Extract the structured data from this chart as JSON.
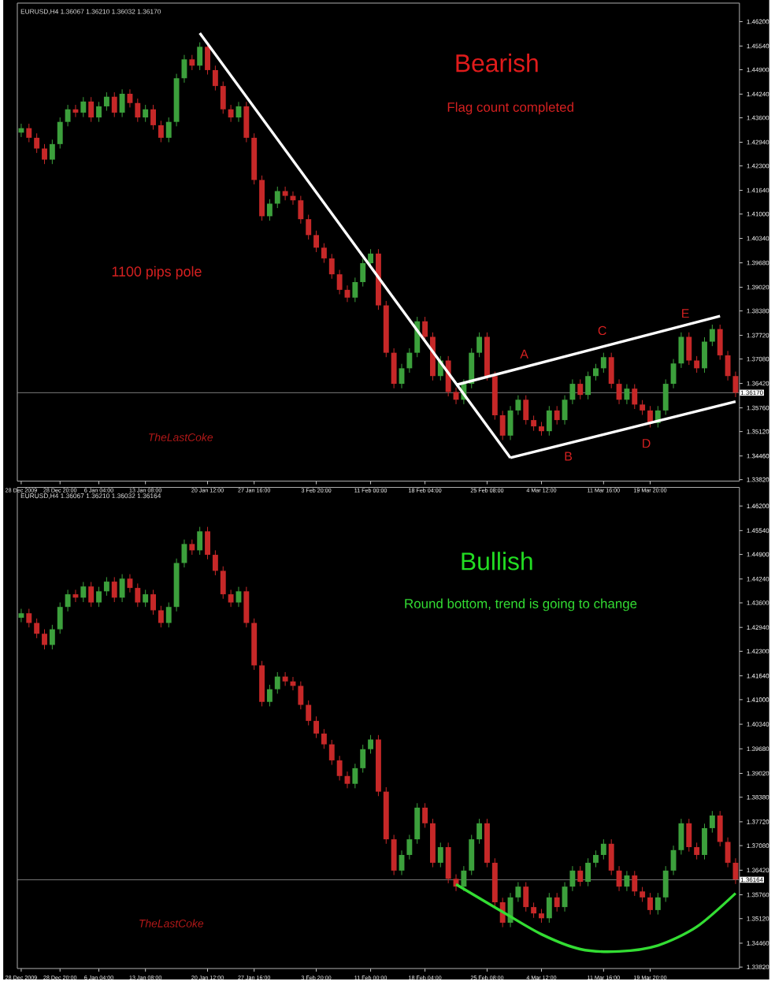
{
  "chart_data": [
    {
      "type": "candlestick",
      "title": "Bearish",
      "subtitle": "Flag count completed",
      "categories": [
        "28 Dec 2009",
        null,
        null,
        null,
        null,
        "28 Dec 20:00",
        null,
        null,
        null,
        null,
        "6 Jan 04:00",
        null,
        null,
        null,
        null,
        null,
        "13 Jan 08:00",
        null,
        null,
        null,
        null,
        null,
        null,
        null,
        "20 Jan 12:00",
        null,
        null,
        null,
        null,
        null,
        "27 Jan 16:00",
        null,
        null,
        null,
        null,
        null,
        null,
        null,
        "3 Feb 20:00",
        null,
        null,
        null,
        null,
        null,
        null,
        "11 Feb 00:00",
        null,
        null,
        null,
        null,
        null,
        null,
        "18 Feb 04:00",
        null,
        null,
        null,
        null,
        null,
        null,
        null,
        "25 Feb 08:00",
        null,
        null,
        null,
        null,
        null,
        null,
        "4 Mar 12:00",
        null,
        null,
        null,
        null,
        null,
        null,
        null,
        "11 Mar 16:00",
        null,
        null,
        null,
        null,
        null,
        "19 Mar 20:00",
        null,
        null,
        null,
        null,
        null,
        null,
        null,
        null,
        null,
        null,
        null
      ],
      "ohlc": [
        [
          1.432,
          1.4344,
          1.4308,
          1.4332
        ],
        [
          1.4332,
          1.4344,
          1.4294,
          1.4306
        ],
        [
          1.4306,
          1.4318,
          1.4265,
          1.4277
        ],
        [
          1.4277,
          1.4289,
          1.4235,
          1.4247
        ],
        [
          1.4247,
          1.4301,
          1.4235,
          1.4289
        ],
        [
          1.4289,
          1.4361,
          1.4277,
          1.4349
        ],
        [
          1.4349,
          1.4395,
          1.4337,
          1.4383
        ],
        [
          1.4383,
          1.4395,
          1.4362,
          1.4374
        ],
        [
          1.4374,
          1.4416,
          1.4362,
          1.4404
        ],
        [
          1.4404,
          1.4416,
          1.4349,
          1.4361
        ],
        [
          1.4361,
          1.4403,
          1.4349,
          1.4391
        ],
        [
          1.4391,
          1.4429,
          1.4379,
          1.4417
        ],
        [
          1.4417,
          1.4429,
          1.4362,
          1.4374
        ],
        [
          1.4374,
          1.4437,
          1.4362,
          1.4425
        ],
        [
          1.4425,
          1.4437,
          1.4388,
          1.44
        ],
        [
          1.44,
          1.4412,
          1.4349,
          1.4361
        ],
        [
          1.4361,
          1.4395,
          1.4349,
          1.4383
        ],
        [
          1.4383,
          1.4395,
          1.4328,
          1.434
        ],
        [
          1.434,
          1.4352,
          1.4294,
          1.4306
        ],
        [
          1.4306,
          1.4361,
          1.4294,
          1.4349
        ],
        [
          1.4349,
          1.4479,
          1.4337,
          1.4467
        ],
        [
          1.4467,
          1.453,
          1.4455,
          1.4518
        ],
        [
          1.4518,
          1.453,
          1.4489,
          1.4501
        ],
        [
          1.4501,
          1.4564,
          1.4489,
          1.4552
        ],
        [
          1.4552,
          1.4564,
          1.4477,
          1.4489
        ],
        [
          1.4489,
          1.4501,
          1.4434,
          1.4446
        ],
        [
          1.4446,
          1.4458,
          1.4371,
          1.4383
        ],
        [
          1.4383,
          1.4395,
          1.4349,
          1.4361
        ],
        [
          1.4361,
          1.4403,
          1.4349,
          1.4391
        ],
        [
          1.4391,
          1.4403,
          1.4294,
          1.4306
        ],
        [
          1.4306,
          1.4318,
          1.418,
          1.4192
        ],
        [
          1.4192,
          1.4204,
          1.4082,
          1.4094
        ],
        [
          1.4094,
          1.414,
          1.4082,
          1.4128
        ],
        [
          1.4128,
          1.4174,
          1.4116,
          1.4162
        ],
        [
          1.4162,
          1.4174,
          1.4137,
          1.4149
        ],
        [
          1.4149,
          1.4161,
          1.4125,
          1.4137
        ],
        [
          1.4137,
          1.4149,
          1.4074,
          1.4086
        ],
        [
          1.4086,
          1.4098,
          1.4031,
          1.4043
        ],
        [
          1.4043,
          1.4055,
          1.3997,
          1.4009
        ],
        [
          1.4009,
          1.4021,
          1.3968,
          1.398
        ],
        [
          1.398,
          1.3992,
          1.3925,
          1.3937
        ],
        [
          1.3937,
          1.3949,
          1.3883,
          1.3895
        ],
        [
          1.3895,
          1.3907,
          1.3862,
          1.3874
        ],
        [
          1.3874,
          1.3928,
          1.3862,
          1.3916
        ],
        [
          1.3916,
          1.3979,
          1.3904,
          1.3967
        ],
        [
          1.3967,
          1.4005,
          1.3955,
          1.3993
        ],
        [
          1.3993,
          1.4005,
          1.3841,
          1.3853
        ],
        [
          1.3853,
          1.3865,
          1.3713,
          1.3725
        ],
        [
          1.3725,
          1.3737,
          1.3629,
          1.3641
        ],
        [
          1.3641,
          1.3695,
          1.3629,
          1.3683
        ],
        [
          1.3683,
          1.3737,
          1.3671,
          1.3725
        ],
        [
          1.3725,
          1.3822,
          1.3713,
          1.381
        ],
        [
          1.381,
          1.3822,
          1.3756,
          1.3768
        ],
        [
          1.3768,
          1.378,
          1.365,
          1.3662
        ],
        [
          1.3662,
          1.3716,
          1.365,
          1.3704
        ],
        [
          1.3704,
          1.3716,
          1.3607,
          1.3619
        ],
        [
          1.3619,
          1.3631,
          1.3586,
          1.3598
        ],
        [
          1.3598,
          1.3653,
          1.3586,
          1.3641
        ],
        [
          1.3641,
          1.3737,
          1.3629,
          1.3725
        ],
        [
          1.3725,
          1.378,
          1.3713,
          1.3768
        ],
        [
          1.3768,
          1.378,
          1.365,
          1.3662
        ],
        [
          1.3662,
          1.3674,
          1.3544,
          1.3556
        ],
        [
          1.3556,
          1.3568,
          1.3489,
          1.3501
        ],
        [
          1.3501,
          1.3581,
          1.3489,
          1.3569
        ],
        [
          1.3569,
          1.361,
          1.3557,
          1.3598
        ],
        [
          1.3598,
          1.361,
          1.3531,
          1.3543
        ],
        [
          1.3543,
          1.3555,
          1.3514,
          1.3526
        ],
        [
          1.3526,
          1.3538,
          1.3501,
          1.3513
        ],
        [
          1.3513,
          1.3581,
          1.3501,
          1.3569
        ],
        [
          1.3569,
          1.3581,
          1.3531,
          1.3543
        ],
        [
          1.3543,
          1.361,
          1.3531,
          1.3598
        ],
        [
          1.3598,
          1.3653,
          1.3586,
          1.3641
        ],
        [
          1.3641,
          1.3653,
          1.3599,
          1.3611
        ],
        [
          1.3611,
          1.3674,
          1.3599,
          1.3662
        ],
        [
          1.3662,
          1.3695,
          1.365,
          1.3683
        ],
        [
          1.3683,
          1.3725,
          1.3671,
          1.3713
        ],
        [
          1.3713,
          1.3725,
          1.3629,
          1.3641
        ],
        [
          1.3641,
          1.3653,
          1.3586,
          1.3598
        ],
        [
          1.3598,
          1.364,
          1.3586,
          1.3628
        ],
        [
          1.3628,
          1.364,
          1.3573,
          1.3585
        ],
        [
          1.3585,
          1.3597,
          1.3557,
          1.3569
        ],
        [
          1.3569,
          1.3581,
          1.3523,
          1.3535
        ],
        [
          1.3535,
          1.3581,
          1.3523,
          1.3569
        ],
        [
          1.3569,
          1.3653,
          1.3557,
          1.3641
        ],
        [
          1.3641,
          1.3708,
          1.3629,
          1.3696
        ],
        [
          1.3696,
          1.378,
          1.3684,
          1.3768
        ],
        [
          1.3768,
          1.378,
          1.3692,
          1.3704
        ],
        [
          1.3704,
          1.3716,
          1.3671,
          1.3683
        ],
        [
          1.3683,
          1.3767,
          1.3671,
          1.3755
        ],
        [
          1.3755,
          1.3801,
          1.3743,
          1.3789
        ],
        [
          1.3789,
          1.3801,
          1.3706,
          1.3718
        ],
        [
          1.3718,
          1.373,
          1.365,
          1.3662
        ],
        [
          1.3662,
          1.3674,
          1.3605,
          1.3617
        ]
      ],
      "colors": [
        "#3ca03c",
        "#c62828",
        "#c62828",
        "#c62828",
        "#3ca03c",
        "#3ca03c",
        "#3ca03c",
        "#c62828",
        "#3ca03c",
        "#c62828",
        "#3ca03c",
        "#3ca03c",
        "#c62828",
        "#3ca03c",
        "#c62828",
        "#c62828",
        "#3ca03c",
        "#c62828",
        "#c62828",
        "#3ca03c",
        "#3ca03c",
        "#3ca03c",
        "#c62828",
        "#3ca03c",
        "#c62828",
        "#c62828",
        "#c62828",
        "#c62828",
        "#3ca03c",
        "#c62828",
        "#c62828",
        "#c62828",
        "#3ca03c",
        "#3ca03c",
        "#c62828",
        "#c62828",
        "#c62828",
        "#c62828",
        "#c62828",
        "#c62828",
        "#c62828",
        "#c62828",
        "#c62828",
        "#3ca03c",
        "#3ca03c",
        "#3ca03c",
        "#c62828",
        "#c62828",
        "#c62828",
        "#3ca03c",
        "#3ca03c",
        "#3ca03c",
        "#c62828",
        "#c62828",
        "#3ca03c",
        "#c62828",
        "#c62828",
        "#3ca03c",
        "#3ca03c",
        "#3ca03c",
        "#c62828",
        "#c62828",
        "#c62828",
        "#3ca03c",
        "#3ca03c",
        "#c62828",
        "#c62828",
        "#c62828",
        "#3ca03c",
        "#c62828",
        "#3ca03c",
        "#3ca03c",
        "#c62828",
        "#3ca03c",
        "#3ca03c",
        "#3ca03c",
        "#c62828",
        "#c62828",
        "#3ca03c",
        "#c62828",
        "#c62828",
        "#c62828",
        "#3ca03c",
        "#3ca03c",
        "#3ca03c",
        "#3ca03c",
        "#c62828",
        "#c62828",
        "#3ca03c",
        "#3ca03c",
        "#c62828",
        "#c62828",
        "#c62828"
      ],
      "series": [
        {
          "type": "line",
          "color": "#ffffff",
          "values": [
            null,
            null,
            null,
            null,
            null,
            null,
            null,
            null,
            null,
            null,
            null,
            null,
            null,
            null,
            null,
            null,
            null,
            null,
            null,
            null,
            null,
            null,
            null,
            1.4589,
            null,
            null,
            null,
            null,
            null,
            null,
            null,
            null,
            null,
            null,
            null,
            null,
            null,
            null,
            null,
            null,
            null,
            null,
            null,
            null,
            null,
            null,
            null,
            null,
            null,
            null,
            null,
            null,
            null,
            null,
            null,
            null,
            null,
            null,
            null,
            null,
            null,
            null,
            null,
            1.3441,
            null,
            null,
            null,
            null,
            null,
            null,
            null,
            null,
            null,
            null,
            null,
            null,
            null,
            null,
            null,
            null,
            null,
            null,
            null,
            null,
            null,
            null,
            null,
            null,
            null,
            null,
            null,
            null,
            null
          ]
        },
        {
          "type": "line",
          "color": "#ffffff",
          "values": [
            null,
            null,
            null,
            null,
            null,
            null,
            null,
            null,
            null,
            null,
            null,
            null,
            null,
            null,
            null,
            null,
            null,
            null,
            null,
            null,
            null,
            null,
            null,
            null,
            null,
            null,
            null,
            null,
            null,
            null,
            null,
            null,
            null,
            null,
            null,
            null,
            null,
            null,
            null,
            null,
            null,
            null,
            null,
            null,
            null,
            null,
            null,
            null,
            null,
            null,
            null,
            null,
            null,
            null,
            null,
            null,
            1.3638,
            null,
            null,
            null,
            null,
            null,
            null,
            null,
            null,
            null,
            null,
            null,
            null,
            null,
            null,
            null,
            null,
            null,
            null,
            null,
            null,
            null,
            null,
            null,
            null,
            null,
            null,
            null,
            null,
            null,
            null,
            null,
            null,
            null,
            1.3824,
            null,
            null
          ]
        },
        {
          "type": "line",
          "color": "#ffffff",
          "values": [
            null,
            null,
            null,
            null,
            null,
            null,
            null,
            null,
            null,
            null,
            null,
            null,
            null,
            null,
            null,
            null,
            null,
            null,
            null,
            null,
            null,
            null,
            null,
            null,
            null,
            null,
            null,
            null,
            null,
            null,
            null,
            null,
            null,
            null,
            null,
            null,
            null,
            null,
            null,
            null,
            null,
            null,
            null,
            null,
            null,
            null,
            null,
            null,
            null,
            null,
            null,
            null,
            null,
            null,
            null,
            null,
            null,
            null,
            null,
            null,
            null,
            null,
            null,
            1.3441,
            null,
            null,
            null,
            null,
            null,
            null,
            null,
            null,
            null,
            null,
            null,
            null,
            null,
            null,
            null,
            null,
            null,
            null,
            null,
            null,
            null,
            null,
            null,
            null,
            null,
            null,
            null,
            null,
            1.3593
          ]
        }
      ],
      "ylim": [
        1.3378,
        1.467
      ],
      "yticks": [
        {
          "value": 1.462,
          "label": "1.46200"
        },
        {
          "value": 1.4554,
          "label": "1.45540"
        },
        {
          "value": 1.449,
          "label": "1.44900"
        },
        {
          "value": 1.4424,
          "label": "1.44240"
        },
        {
          "value": 1.436,
          "label": "1.43600"
        },
        {
          "value": 1.4294,
          "label": "1.42940"
        },
        {
          "value": 1.423,
          "label": "1.42300"
        },
        {
          "value": 1.4164,
          "label": "1.41640"
        },
        {
          "value": 1.41,
          "label": "1.41000"
        },
        {
          "value": 1.4034,
          "label": "1.40340"
        },
        {
          "value": 1.3968,
          "label": "1.39680"
        },
        {
          "value": 1.3902,
          "label": "1.39020"
        },
        {
          "value": 1.3838,
          "label": "1.38380"
        },
        {
          "value": 1.3772,
          "label": "1.37720"
        },
        {
          "value": 1.3708,
          "label": "1.37080"
        },
        {
          "value": 1.3642,
          "label": "1.36420"
        },
        {
          "value": 1.3576,
          "label": "1.35760"
        },
        {
          "value": 1.3512,
          "label": "1.35120"
        },
        {
          "value": 1.3446,
          "label": "1.34460"
        },
        {
          "value": 1.3382,
          "label": "1.33820"
        }
      ],
      "ref_lines": [
        {
          "axis": "y",
          "value": 1.3617,
          "label": "1.36170",
          "color": "#9a9a9a"
        }
      ],
      "annotations": [
        "EURUSD,H4  1.36067 1.36210 1.36032 1.36170",
        "1100 pips pole",
        "A",
        "B",
        "C",
        "D",
        "E",
        "TheLastCoke"
      ]
    },
    {
      "type": "candlestick",
      "title": "Bullish",
      "subtitle": "Round bottom, trend is going to change",
      "categories": [
        "28 Dec 2009",
        null,
        null,
        null,
        null,
        "28 Dec 20:00",
        null,
        null,
        null,
        null,
        "6 Jan 04:00",
        null,
        null,
        null,
        null,
        null,
        "13 Jan 08:00",
        null,
        null,
        null,
        null,
        null,
        null,
        null,
        "20 Jan 12:00",
        null,
        null,
        null,
        null,
        null,
        "27 Jan 16:00",
        null,
        null,
        null,
        null,
        null,
        null,
        null,
        "3 Feb 20:00",
        null,
        null,
        null,
        null,
        null,
        null,
        "11 Feb 00:00",
        null,
        null,
        null,
        null,
        null,
        null,
        "18 Feb 04:00",
        null,
        null,
        null,
        null,
        null,
        null,
        null,
        "25 Feb 08:00",
        null,
        null,
        null,
        null,
        null,
        null,
        "4 Mar 12:00",
        null,
        null,
        null,
        null,
        null,
        null,
        null,
        "11 Mar 16:00",
        null,
        null,
        null,
        null,
        null,
        "19 Mar 20:00",
        null,
        null,
        null,
        null,
        null,
        null,
        null,
        null,
        null,
        null,
        null
      ],
      "ohlc": [
        [
          1.432,
          1.4344,
          1.4308,
          1.4332
        ],
        [
          1.4332,
          1.4344,
          1.4294,
          1.4306
        ],
        [
          1.4306,
          1.4318,
          1.4265,
          1.4277
        ],
        [
          1.4277,
          1.4289,
          1.4235,
          1.4247
        ],
        [
          1.4247,
          1.4301,
          1.4235,
          1.4289
        ],
        [
          1.4289,
          1.4361,
          1.4277,
          1.4349
        ],
        [
          1.4349,
          1.4395,
          1.4337,
          1.4383
        ],
        [
          1.4383,
          1.4395,
          1.4362,
          1.4374
        ],
        [
          1.4374,
          1.4416,
          1.4362,
          1.4404
        ],
        [
          1.4404,
          1.4416,
          1.4349,
          1.4361
        ],
        [
          1.4361,
          1.4403,
          1.4349,
          1.4391
        ],
        [
          1.4391,
          1.4429,
          1.4379,
          1.4417
        ],
        [
          1.4417,
          1.4429,
          1.4362,
          1.4374
        ],
        [
          1.4374,
          1.4437,
          1.4362,
          1.4425
        ],
        [
          1.4425,
          1.4437,
          1.4388,
          1.44
        ],
        [
          1.44,
          1.4412,
          1.4349,
          1.4361
        ],
        [
          1.4361,
          1.4395,
          1.4349,
          1.4383
        ],
        [
          1.4383,
          1.4395,
          1.4328,
          1.434
        ],
        [
          1.434,
          1.4352,
          1.4294,
          1.4306
        ],
        [
          1.4306,
          1.4361,
          1.4294,
          1.4349
        ],
        [
          1.4349,
          1.4479,
          1.4337,
          1.4467
        ],
        [
          1.4467,
          1.453,
          1.4455,
          1.4518
        ],
        [
          1.4518,
          1.453,
          1.4489,
          1.4501
        ],
        [
          1.4501,
          1.4564,
          1.4489,
          1.4552
        ],
        [
          1.4552,
          1.4564,
          1.4477,
          1.4489
        ],
        [
          1.4489,
          1.4501,
          1.4434,
          1.4446
        ],
        [
          1.4446,
          1.4458,
          1.4371,
          1.4383
        ],
        [
          1.4383,
          1.4395,
          1.4349,
          1.4361
        ],
        [
          1.4361,
          1.4403,
          1.4349,
          1.4391
        ],
        [
          1.4391,
          1.4403,
          1.4294,
          1.4306
        ],
        [
          1.4306,
          1.4318,
          1.418,
          1.4192
        ],
        [
          1.4192,
          1.4204,
          1.4082,
          1.4094
        ],
        [
          1.4094,
          1.414,
          1.4082,
          1.4128
        ],
        [
          1.4128,
          1.4174,
          1.4116,
          1.4162
        ],
        [
          1.4162,
          1.4174,
          1.4137,
          1.4149
        ],
        [
          1.4149,
          1.4161,
          1.4125,
          1.4137
        ],
        [
          1.4137,
          1.4149,
          1.4074,
          1.4086
        ],
        [
          1.4086,
          1.4098,
          1.4031,
          1.4043
        ],
        [
          1.4043,
          1.4055,
          1.3997,
          1.4009
        ],
        [
          1.4009,
          1.4021,
          1.3968,
          1.398
        ],
        [
          1.398,
          1.3992,
          1.3925,
          1.3937
        ],
        [
          1.3937,
          1.3949,
          1.3883,
          1.3895
        ],
        [
          1.3895,
          1.3907,
          1.3862,
          1.3874
        ],
        [
          1.3874,
          1.3928,
          1.3862,
          1.3916
        ],
        [
          1.3916,
          1.3979,
          1.3904,
          1.3967
        ],
        [
          1.3967,
          1.4005,
          1.3955,
          1.3993
        ],
        [
          1.3993,
          1.4005,
          1.3841,
          1.3853
        ],
        [
          1.3853,
          1.3865,
          1.3713,
          1.3725
        ],
        [
          1.3725,
          1.3737,
          1.3629,
          1.3641
        ],
        [
          1.3641,
          1.3695,
          1.3629,
          1.3683
        ],
        [
          1.3683,
          1.3737,
          1.3671,
          1.3725
        ],
        [
          1.3725,
          1.3822,
          1.3713,
          1.381
        ],
        [
          1.381,
          1.3822,
          1.3756,
          1.3768
        ],
        [
          1.3768,
          1.378,
          1.365,
          1.3662
        ],
        [
          1.3662,
          1.3716,
          1.365,
          1.3704
        ],
        [
          1.3704,
          1.3716,
          1.3607,
          1.3619
        ],
        [
          1.3619,
          1.3631,
          1.3586,
          1.3598
        ],
        [
          1.3598,
          1.3653,
          1.3586,
          1.3641
        ],
        [
          1.3641,
          1.3737,
          1.3629,
          1.3725
        ],
        [
          1.3725,
          1.378,
          1.3713,
          1.3768
        ],
        [
          1.3768,
          1.378,
          1.365,
          1.3662
        ],
        [
          1.3662,
          1.3674,
          1.3544,
          1.3556
        ],
        [
          1.3556,
          1.3568,
          1.3489,
          1.3501
        ],
        [
          1.3501,
          1.3581,
          1.3489,
          1.3569
        ],
        [
          1.3569,
          1.361,
          1.3557,
          1.3598
        ],
        [
          1.3598,
          1.361,
          1.3531,
          1.3543
        ],
        [
          1.3543,
          1.3555,
          1.3514,
          1.3526
        ],
        [
          1.3526,
          1.3538,
          1.3501,
          1.3513
        ],
        [
          1.3513,
          1.3581,
          1.3501,
          1.3569
        ],
        [
          1.3569,
          1.3581,
          1.3531,
          1.3543
        ],
        [
          1.3543,
          1.361,
          1.3531,
          1.3598
        ],
        [
          1.3598,
          1.3653,
          1.3586,
          1.3641
        ],
        [
          1.3641,
          1.3653,
          1.3599,
          1.3611
        ],
        [
          1.3611,
          1.3674,
          1.3599,
          1.3662
        ],
        [
          1.3662,
          1.3695,
          1.365,
          1.3683
        ],
        [
          1.3683,
          1.3725,
          1.3671,
          1.3713
        ],
        [
          1.3713,
          1.3725,
          1.3629,
          1.3641
        ],
        [
          1.3641,
          1.3653,
          1.3586,
          1.3598
        ],
        [
          1.3598,
          1.364,
          1.3586,
          1.3628
        ],
        [
          1.3628,
          1.364,
          1.3573,
          1.3585
        ],
        [
          1.3585,
          1.3597,
          1.3557,
          1.3569
        ],
        [
          1.3569,
          1.3581,
          1.3523,
          1.3535
        ],
        [
          1.3535,
          1.3581,
          1.3523,
          1.3569
        ],
        [
          1.3569,
          1.3653,
          1.3557,
          1.3641
        ],
        [
          1.3641,
          1.3708,
          1.3629,
          1.3696
        ],
        [
          1.3696,
          1.378,
          1.3684,
          1.3768
        ],
        [
          1.3768,
          1.378,
          1.3692,
          1.3704
        ],
        [
          1.3704,
          1.3716,
          1.3671,
          1.3683
        ],
        [
          1.3683,
          1.3767,
          1.3671,
          1.3755
        ],
        [
          1.3755,
          1.3801,
          1.3743,
          1.3789
        ],
        [
          1.3789,
          1.3801,
          1.3706,
          1.3718
        ],
        [
          1.3718,
          1.373,
          1.365,
          1.3662
        ],
        [
          1.3662,
          1.3674,
          1.3605,
          1.3617
        ]
      ],
      "colors": [
        "#3ca03c",
        "#c62828",
        "#c62828",
        "#c62828",
        "#3ca03c",
        "#3ca03c",
        "#3ca03c",
        "#c62828",
        "#3ca03c",
        "#c62828",
        "#3ca03c",
        "#3ca03c",
        "#c62828",
        "#3ca03c",
        "#c62828",
        "#c62828",
        "#3ca03c",
        "#c62828",
        "#c62828",
        "#3ca03c",
        "#3ca03c",
        "#3ca03c",
        "#c62828",
        "#3ca03c",
        "#c62828",
        "#c62828",
        "#c62828",
        "#c62828",
        "#3ca03c",
        "#c62828",
        "#c62828",
        "#c62828",
        "#3ca03c",
        "#3ca03c",
        "#c62828",
        "#c62828",
        "#c62828",
        "#c62828",
        "#c62828",
        "#c62828",
        "#c62828",
        "#c62828",
        "#c62828",
        "#3ca03c",
        "#3ca03c",
        "#3ca03c",
        "#c62828",
        "#c62828",
        "#c62828",
        "#3ca03c",
        "#3ca03c",
        "#3ca03c",
        "#c62828",
        "#c62828",
        "#3ca03c",
        "#c62828",
        "#c62828",
        "#3ca03c",
        "#3ca03c",
        "#3ca03c",
        "#c62828",
        "#c62828",
        "#c62828",
        "#3ca03c",
        "#3ca03c",
        "#c62828",
        "#c62828",
        "#c62828",
        "#3ca03c",
        "#c62828",
        "#3ca03c",
        "#3ca03c",
        "#c62828",
        "#3ca03c",
        "#3ca03c",
        "#3ca03c",
        "#c62828",
        "#c62828",
        "#3ca03c",
        "#c62828",
        "#c62828",
        "#c62828",
        "#3ca03c",
        "#3ca03c",
        "#3ca03c",
        "#3ca03c",
        "#c62828",
        "#c62828",
        "#3ca03c",
        "#3ca03c",
        "#c62828",
        "#c62828",
        "#c62828"
      ],
      "series": [
        {
          "type": "line",
          "color": "#33dd33",
          "values": [
            null,
            null,
            null,
            null,
            null,
            null,
            null,
            null,
            null,
            null,
            null,
            null,
            null,
            null,
            null,
            null,
            null,
            null,
            null,
            null,
            null,
            null,
            null,
            null,
            null,
            null,
            null,
            null,
            null,
            null,
            null,
            null,
            null,
            null,
            null,
            null,
            null,
            null,
            null,
            null,
            null,
            null,
            null,
            null,
            null,
            null,
            null,
            null,
            null,
            null,
            null,
            null,
            null,
            null,
            null,
            null,
            1.3604,
            null,
            null,
            null,
            null,
            null,
            1.353,
            null,
            null,
            null,
            null,
            1.347,
            null,
            null,
            null,
            null,
            1.343,
            null,
            null,
            null,
            null,
            1.3424,
            null,
            null,
            null,
            null,
            1.344,
            null,
            null,
            null,
            null,
            1.349,
            null,
            null,
            null,
            null,
            1.358
          ]
        }
      ],
      "ylim": [
        1.3378,
        1.467
      ],
      "yticks": [
        {
          "value": 1.462,
          "label": "1.46200"
        },
        {
          "value": 1.4554,
          "label": "1.45540"
        },
        {
          "value": 1.449,
          "label": "1.44900"
        },
        {
          "value": 1.4424,
          "label": "1.44240"
        },
        {
          "value": 1.436,
          "label": "1.43600"
        },
        {
          "value": 1.4294,
          "label": "1.42940"
        },
        {
          "value": 1.423,
          "label": "1.42300"
        },
        {
          "value": 1.4164,
          "label": "1.41640"
        },
        {
          "value": 1.41,
          "label": "1.41000"
        },
        {
          "value": 1.4034,
          "label": "1.40340"
        },
        {
          "value": 1.3968,
          "label": "1.39680"
        },
        {
          "value": 1.3902,
          "label": "1.39020"
        },
        {
          "value": 1.3838,
          "label": "1.38380"
        },
        {
          "value": 1.3772,
          "label": "1.37720"
        },
        {
          "value": 1.3708,
          "label": "1.37080"
        },
        {
          "value": 1.3642,
          "label": "1.36420"
        },
        {
          "value": 1.3576,
          "label": "1.35760"
        },
        {
          "value": 1.3512,
          "label": "1.35120"
        },
        {
          "value": 1.3446,
          "label": "1.34460"
        },
        {
          "value": 1.3382,
          "label": "1.33820"
        }
      ],
      "ref_lines": [
        {
          "axis": "y",
          "value": 1.36164,
          "label": "1.36164",
          "color": "#9a9a9a"
        }
      ],
      "annotations": [
        "EURUSD,H4  1.36067 1.36210 1.36032 1.36164",
        "TheLastCoke"
      ]
    }
  ]
}
